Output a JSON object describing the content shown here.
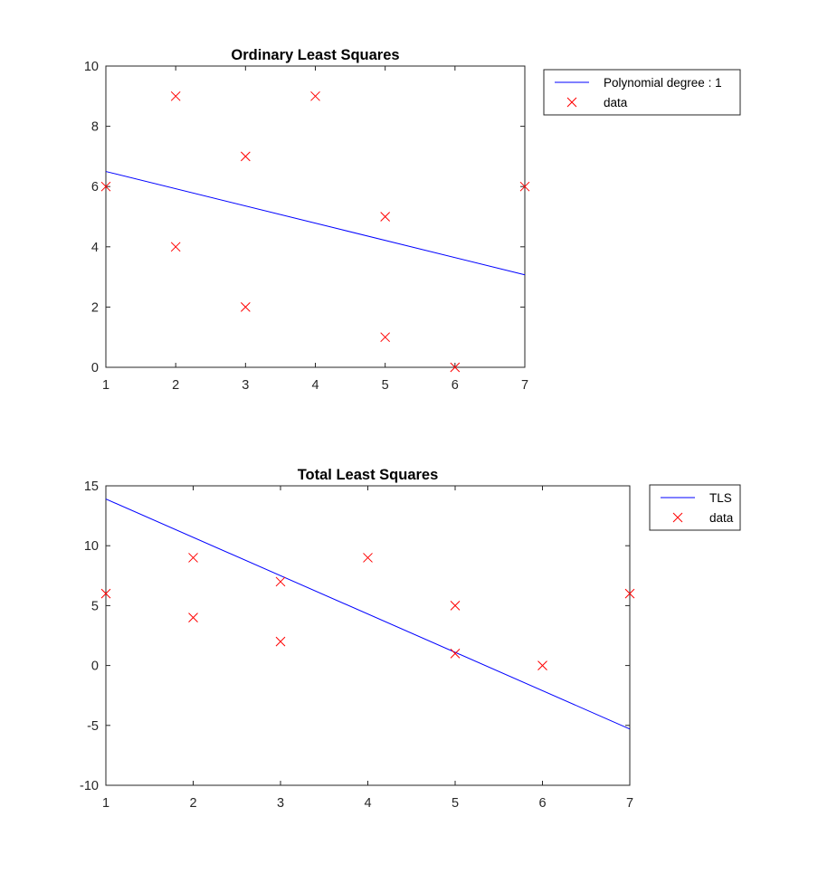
{
  "chart_data": [
    {
      "type": "line",
      "title": "Ordinary Least Squares",
      "xlabel": "",
      "ylabel": "",
      "xlim": [
        1,
        7
      ],
      "ylim": [
        0,
        10
      ],
      "xticks": [
        1,
        2,
        3,
        4,
        5,
        6,
        7
      ],
      "yticks": [
        0,
        2,
        4,
        6,
        8,
        10
      ],
      "grid": false,
      "legend_position": "outside-right-top",
      "fit_line": {
        "name": "Polynomial degree : 1",
        "color": "#0000ff",
        "x": [
          1,
          7
        ],
        "y": [
          6.5,
          3.07
        ]
      },
      "scatter": {
        "name": "data",
        "marker": "x",
        "color": "#ff0000",
        "x": [
          1,
          2,
          2,
          3,
          3,
          4,
          5,
          5,
          6,
          7
        ],
        "y": [
          6,
          9,
          4,
          7,
          2,
          9,
          5,
          1,
          0,
          6
        ]
      }
    },
    {
      "type": "line",
      "title": "Total Least Squares",
      "xlabel": "",
      "ylabel": "",
      "xlim": [
        1,
        7
      ],
      "ylim": [
        -10,
        15
      ],
      "xticks": [
        1,
        2,
        3,
        4,
        5,
        6,
        7
      ],
      "yticks": [
        -10,
        -5,
        0,
        5,
        10,
        15
      ],
      "grid": false,
      "legend_position": "outside-right-top",
      "fit_line": {
        "name": "TLS",
        "color": "#0000ff",
        "x": [
          1,
          7
        ],
        "y": [
          13.9,
          -5.3
        ]
      },
      "scatter": {
        "name": "data",
        "marker": "x",
        "color": "#ff0000",
        "x": [
          1,
          2,
          2,
          3,
          3,
          4,
          5,
          5,
          6,
          7
        ],
        "y": [
          6,
          9,
          4,
          7,
          2,
          9,
          5,
          1,
          0,
          6
        ]
      }
    }
  ]
}
